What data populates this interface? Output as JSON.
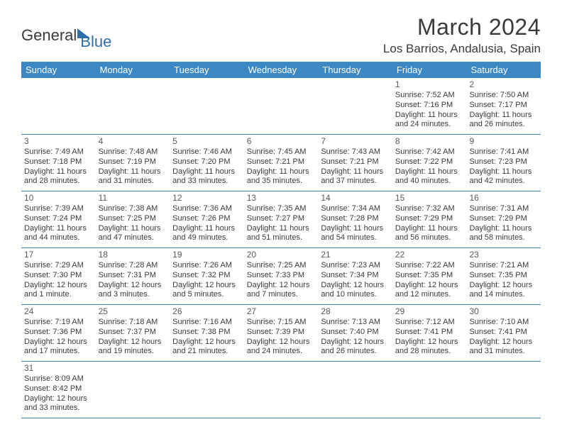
{
  "logo": {
    "part1": "General",
    "part2": "Blue"
  },
  "title": "March 2024",
  "location": "Los Barrios, Andalusia, Spain",
  "weekdays": [
    "Sunday",
    "Monday",
    "Tuesday",
    "Wednesday",
    "Thursday",
    "Friday",
    "Saturday"
  ],
  "colors": {
    "header_bg": "#3b88c4",
    "text": "#3a3a3a",
    "brand_blue": "#2b6fab"
  },
  "weeks": [
    [
      null,
      null,
      null,
      null,
      null,
      {
        "n": "1",
        "sr": "7:52 AM",
        "ss": "7:16 PM",
        "dl": "11 hours and 24 minutes."
      },
      {
        "n": "2",
        "sr": "7:50 AM",
        "ss": "7:17 PM",
        "dl": "11 hours and 26 minutes."
      }
    ],
    [
      {
        "n": "3",
        "sr": "7:49 AM",
        "ss": "7:18 PM",
        "dl": "11 hours and 28 minutes."
      },
      {
        "n": "4",
        "sr": "7:48 AM",
        "ss": "7:19 PM",
        "dl": "11 hours and 31 minutes."
      },
      {
        "n": "5",
        "sr": "7:46 AM",
        "ss": "7:20 PM",
        "dl": "11 hours and 33 minutes."
      },
      {
        "n": "6",
        "sr": "7:45 AM",
        "ss": "7:21 PM",
        "dl": "11 hours and 35 minutes."
      },
      {
        "n": "7",
        "sr": "7:43 AM",
        "ss": "7:21 PM",
        "dl": "11 hours and 37 minutes."
      },
      {
        "n": "8",
        "sr": "7:42 AM",
        "ss": "7:22 PM",
        "dl": "11 hours and 40 minutes."
      },
      {
        "n": "9",
        "sr": "7:41 AM",
        "ss": "7:23 PM",
        "dl": "11 hours and 42 minutes."
      }
    ],
    [
      {
        "n": "10",
        "sr": "7:39 AM",
        "ss": "7:24 PM",
        "dl": "11 hours and 44 minutes."
      },
      {
        "n": "11",
        "sr": "7:38 AM",
        "ss": "7:25 PM",
        "dl": "11 hours and 47 minutes."
      },
      {
        "n": "12",
        "sr": "7:36 AM",
        "ss": "7:26 PM",
        "dl": "11 hours and 49 minutes."
      },
      {
        "n": "13",
        "sr": "7:35 AM",
        "ss": "7:27 PM",
        "dl": "11 hours and 51 minutes."
      },
      {
        "n": "14",
        "sr": "7:34 AM",
        "ss": "7:28 PM",
        "dl": "11 hours and 54 minutes."
      },
      {
        "n": "15",
        "sr": "7:32 AM",
        "ss": "7:29 PM",
        "dl": "11 hours and 56 minutes."
      },
      {
        "n": "16",
        "sr": "7:31 AM",
        "ss": "7:29 PM",
        "dl": "11 hours and 58 minutes."
      }
    ],
    [
      {
        "n": "17",
        "sr": "7:29 AM",
        "ss": "7:30 PM",
        "dl": "12 hours and 1 minute."
      },
      {
        "n": "18",
        "sr": "7:28 AM",
        "ss": "7:31 PM",
        "dl": "12 hours and 3 minutes."
      },
      {
        "n": "19",
        "sr": "7:26 AM",
        "ss": "7:32 PM",
        "dl": "12 hours and 5 minutes."
      },
      {
        "n": "20",
        "sr": "7:25 AM",
        "ss": "7:33 PM",
        "dl": "12 hours and 7 minutes."
      },
      {
        "n": "21",
        "sr": "7:23 AM",
        "ss": "7:34 PM",
        "dl": "12 hours and 10 minutes."
      },
      {
        "n": "22",
        "sr": "7:22 AM",
        "ss": "7:35 PM",
        "dl": "12 hours and 12 minutes."
      },
      {
        "n": "23",
        "sr": "7:21 AM",
        "ss": "7:35 PM",
        "dl": "12 hours and 14 minutes."
      }
    ],
    [
      {
        "n": "24",
        "sr": "7:19 AM",
        "ss": "7:36 PM",
        "dl": "12 hours and 17 minutes."
      },
      {
        "n": "25",
        "sr": "7:18 AM",
        "ss": "7:37 PM",
        "dl": "12 hours and 19 minutes."
      },
      {
        "n": "26",
        "sr": "7:16 AM",
        "ss": "7:38 PM",
        "dl": "12 hours and 21 minutes."
      },
      {
        "n": "27",
        "sr": "7:15 AM",
        "ss": "7:39 PM",
        "dl": "12 hours and 24 minutes."
      },
      {
        "n": "28",
        "sr": "7:13 AM",
        "ss": "7:40 PM",
        "dl": "12 hours and 26 minutes."
      },
      {
        "n": "29",
        "sr": "7:12 AM",
        "ss": "7:41 PM",
        "dl": "12 hours and 28 minutes."
      },
      {
        "n": "30",
        "sr": "7:10 AM",
        "ss": "7:41 PM",
        "dl": "12 hours and 31 minutes."
      }
    ],
    [
      {
        "n": "31",
        "sr": "8:09 AM",
        "ss": "8:42 PM",
        "dl": "12 hours and 33 minutes."
      },
      null,
      null,
      null,
      null,
      null,
      null
    ]
  ],
  "labels": {
    "sunrise": "Sunrise:",
    "sunset": "Sunset:",
    "daylight": "Daylight:"
  }
}
